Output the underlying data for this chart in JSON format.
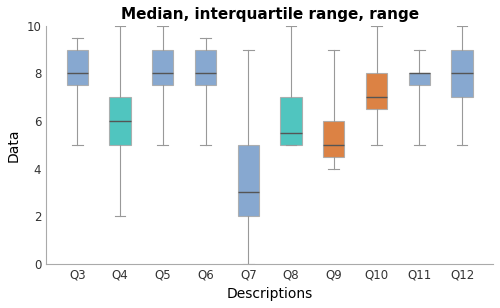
{
  "title": "Median, interquartile range, range",
  "xlabel": "Descriptions",
  "ylabel": "Data",
  "categories": [
    "Q3",
    "Q4",
    "Q5",
    "Q6",
    "Q7",
    "Q8",
    "Q9",
    "Q10",
    "Q11",
    "Q12"
  ],
  "box_data": [
    {
      "median": 8.0,
      "q1": 7.5,
      "q3": 9.0,
      "whislo": 5.0,
      "whishi": 9.5
    },
    {
      "median": 6.0,
      "q1": 5.0,
      "q3": 7.0,
      "whislo": 2.0,
      "whishi": 10.0
    },
    {
      "median": 8.0,
      "q1": 7.5,
      "q3": 9.0,
      "whislo": 5.0,
      "whishi": 10.0
    },
    {
      "median": 8.0,
      "q1": 7.5,
      "q3": 9.0,
      "whislo": 5.0,
      "whishi": 9.5
    },
    {
      "median": 3.0,
      "q1": 2.0,
      "q3": 5.0,
      "whislo": 0.0,
      "whishi": 9.0
    },
    {
      "median": 5.5,
      "q1": 5.0,
      "q3": 7.0,
      "whislo": 5.0,
      "whishi": 10.0
    },
    {
      "median": 5.0,
      "q1": 4.5,
      "q3": 6.0,
      "whislo": 4.0,
      "whishi": 9.0
    },
    {
      "median": 7.0,
      "q1": 6.5,
      "q3": 8.0,
      "whislo": 5.0,
      "whishi": 10.0
    },
    {
      "median": 8.0,
      "q1": 7.5,
      "q3": 8.0,
      "whislo": 5.0,
      "whishi": 9.0
    },
    {
      "median": 8.0,
      "q1": 7.0,
      "q3": 9.0,
      "whislo": 5.0,
      "whishi": 10.0
    }
  ],
  "box_colors": [
    "#7a9fcb",
    "#3dbfb8",
    "#7a9fcb",
    "#7a9fcb",
    "#7a9fcb",
    "#3dbfb8",
    "#d97530",
    "#d97530",
    "#7a9fcb",
    "#7a9fcb"
  ],
  "box_edge_color": "#aaaaaa",
  "whisker_color": "#999999",
  "cap_color": "#999999",
  "median_color": "#555555",
  "ylim": [
    0,
    10
  ],
  "yticks": [
    0,
    2,
    4,
    6,
    8,
    10
  ],
  "figsize": [
    5.0,
    3.08
  ],
  "dpi": 100,
  "title_fontsize": 11,
  "axis_label_fontsize": 10,
  "tick_fontsize": 8.5
}
